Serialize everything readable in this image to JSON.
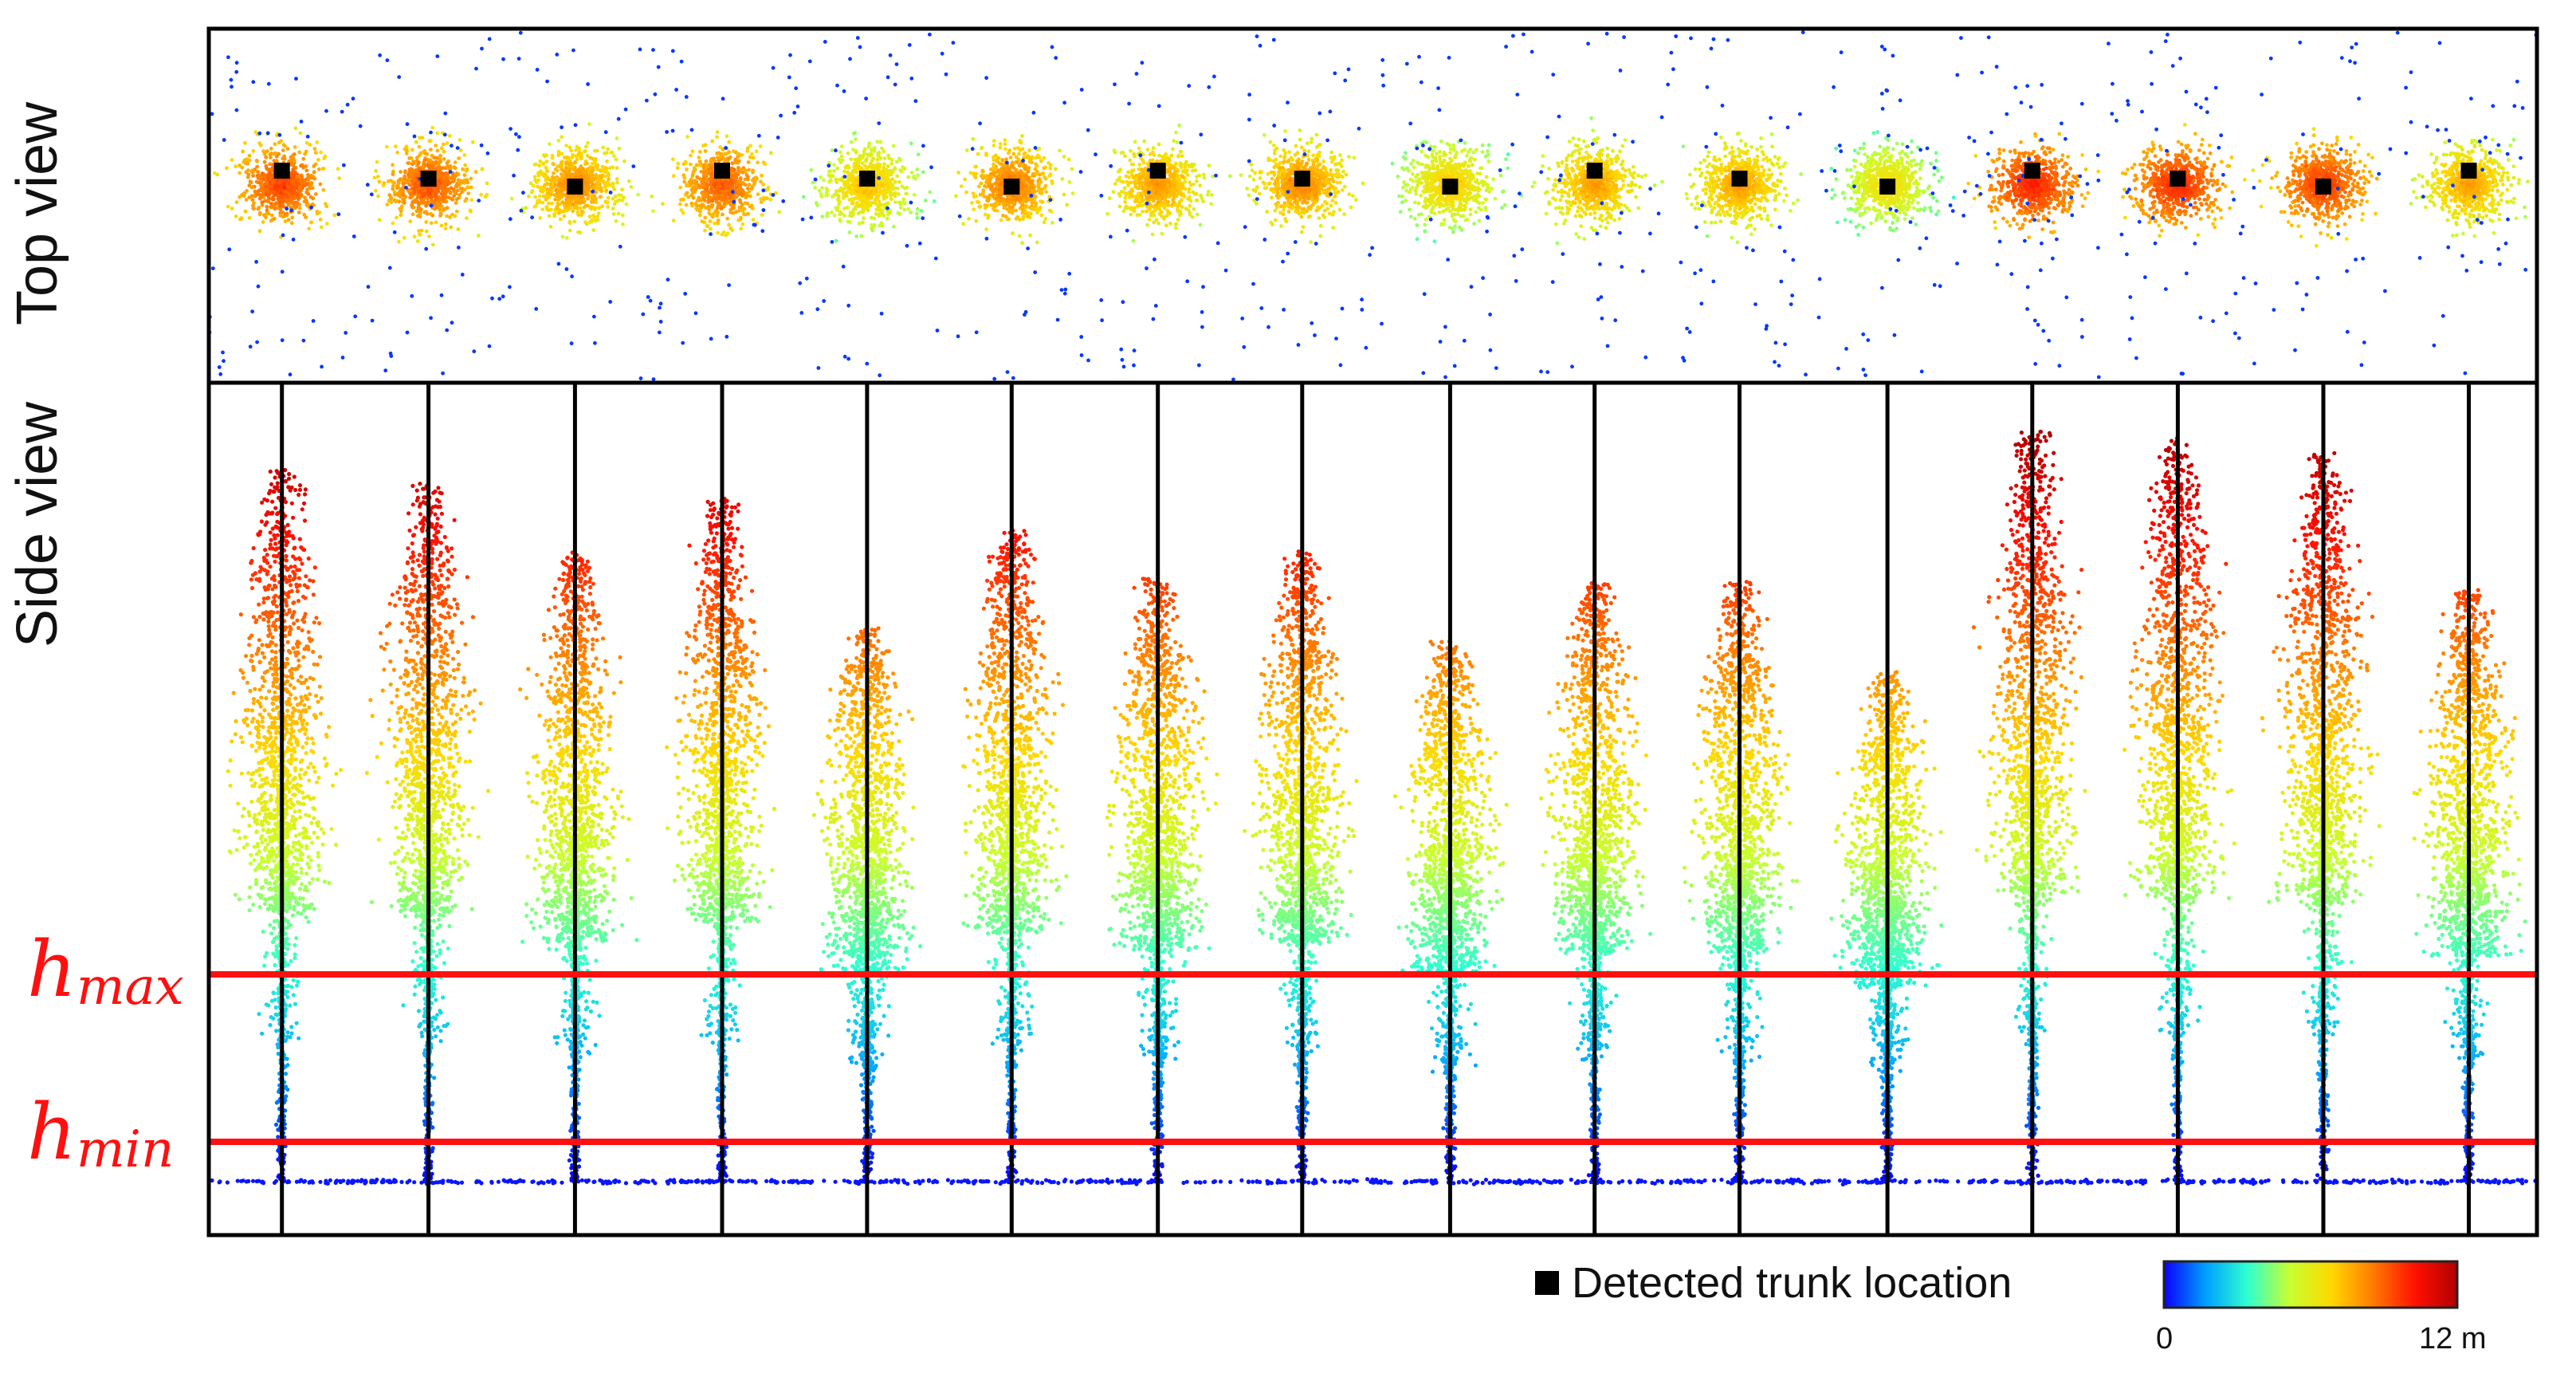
{
  "labels": {
    "top_view": "Top view",
    "side_view": "Side view",
    "h_max_base": "h",
    "h_max_sub": "max",
    "h_min_base": "h",
    "h_min_sub": "min"
  },
  "legend": {
    "trunk_marker": "Detected trunk location",
    "colorbar_min": "0",
    "colorbar_max": "12 m"
  },
  "colorbar_stops": [
    "#0a00ff",
    "#00a0ff",
    "#30ffd0",
    "#c8ff30",
    "#ffd800",
    "#ff7a00",
    "#ff1000",
    "#b00000"
  ],
  "colors": {
    "threshold_line": "#ff1010",
    "trunk_marker": "#000000",
    "frame": "#000000"
  },
  "trees": [
    {
      "offset": 0.2,
      "height": 0.95
    },
    {
      "offset": 0.9,
      "height": 0.93
    },
    {
      "offset": 1.5,
      "height": 0.84
    },
    {
      "offset": 2.5,
      "height": 0.91
    },
    {
      "offset": 2.2,
      "height": 0.74
    },
    {
      "offset": 1.6,
      "height": 0.87
    },
    {
      "offset": 2.0,
      "height": 0.81
    },
    {
      "offset": 1.3,
      "height": 0.84
    },
    {
      "offset": 2.8,
      "height": 0.72
    },
    {
      "offset": 2.2,
      "height": 0.8
    },
    {
      "offset": 1.8,
      "height": 0.8
    },
    {
      "offset": 3.3,
      "height": 0.68
    },
    {
      "offset": 2.9,
      "height": 1.0
    },
    {
      "offset": 2.9,
      "height": 0.99
    },
    {
      "offset": 2.9,
      "height": 0.97
    },
    {
      "offset": 2.9,
      "height": 0.79
    }
  ]
}
